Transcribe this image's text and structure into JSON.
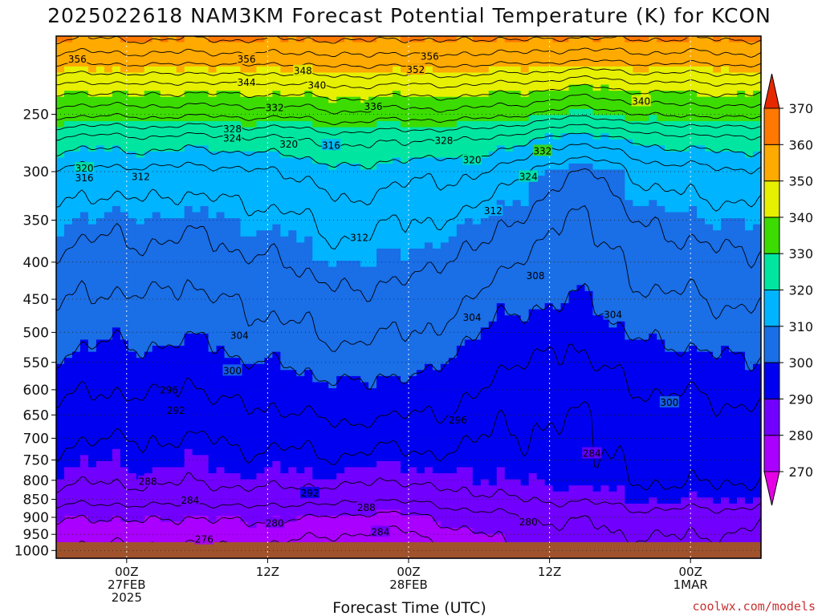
{
  "chart_data": {
    "type": "contour",
    "title": "2025022618 NAM3KM Forecast Potential Temperature (K) for KCON",
    "xlabel": "Forecast Time (UTC)",
    "ylabel": "",
    "credit": "coolwx.com/models",
    "y_axis": {
      "scale": "log",
      "reversed": true,
      "ylim": [
        1025,
        195
      ],
      "ticks": [
        250,
        300,
        350,
        400,
        450,
        500,
        550,
        600,
        650,
        700,
        750,
        800,
        850,
        900,
        950,
        1000
      ],
      "tick_labels": [
        "250",
        "300",
        "350",
        "400",
        "450",
        "500",
        "550",
        "600",
        "650",
        "700",
        "750",
        "800",
        "850",
        "900",
        "950",
        "1000"
      ]
    },
    "x_axis": {
      "xlim": [
        -5,
        45
      ],
      "ticks": [
        {
          "x": 0,
          "lines": [
            "00Z",
            "27FEB",
            "2025"
          ]
        },
        {
          "x": 10,
          "lines": [
            "12Z"
          ]
        },
        {
          "x": 20,
          "lines": [
            "00Z",
            "28FEB"
          ]
        },
        {
          "x": 30,
          "lines": [
            "12Z"
          ]
        },
        {
          "x": 40,
          "lines": [
            "00Z",
            "1MAR"
          ]
        }
      ]
    },
    "grid": true,
    "colorbar": {
      "placement": "right",
      "levels": [
        270,
        280,
        290,
        300,
        310,
        320,
        330,
        340,
        350,
        360,
        370
      ],
      "labels": [
        "270",
        "280",
        "290",
        "300",
        "310",
        "320",
        "330",
        "340",
        "350",
        "360",
        "370"
      ],
      "colors": [
        "#e600e6",
        "#aa00ff",
        "#7200ff",
        "#0000f0",
        "#1a6ee6",
        "#00b4ff",
        "#00e6a0",
        "#3cdc00",
        "#e6f000",
        "#ffaa00",
        "#ff7800",
        "#e62800"
      ]
    },
    "contour_interval": 4,
    "contour_labels": [
      {
        "x": -3.5,
        "p": 210,
        "v": "356"
      },
      {
        "x": 8.5,
        "p": 210,
        "v": "356"
      },
      {
        "x": 20.5,
        "p": 217,
        "v": "352"
      },
      {
        "x": 21.5,
        "p": 208,
        "v": "356"
      },
      {
        "x": 12.5,
        "p": 218,
        "v": "348"
      },
      {
        "x": 13.5,
        "p": 228,
        "v": "340"
      },
      {
        "x": 8.5,
        "p": 226,
        "v": "344"
      },
      {
        "x": 10.5,
        "p": 245,
        "v": "332"
      },
      {
        "x": 17.5,
        "p": 244,
        "v": "336"
      },
      {
        "x": 36.5,
        "p": 240,
        "v": "340"
      },
      {
        "x": 7.5,
        "p": 262,
        "v": "328"
      },
      {
        "x": 7.5,
        "p": 270,
        "v": "324"
      },
      {
        "x": 11.5,
        "p": 275,
        "v": "320"
      },
      {
        "x": 14.5,
        "p": 276,
        "v": "316"
      },
      {
        "x": 22.5,
        "p": 272,
        "v": "328"
      },
      {
        "x": 24.5,
        "p": 289,
        "v": "320"
      },
      {
        "x": 29.5,
        "p": 281,
        "v": "332"
      },
      {
        "x": 28.5,
        "p": 305,
        "v": "324"
      },
      {
        "x": -3.0,
        "p": 297,
        "v": "320"
      },
      {
        "x": -3.0,
        "p": 306,
        "v": "316"
      },
      {
        "x": 1.0,
        "p": 305,
        "v": "312"
      },
      {
        "x": 26.0,
        "p": 340,
        "v": "312"
      },
      {
        "x": 16.5,
        "p": 370,
        "v": "312"
      },
      {
        "x": 29.0,
        "p": 418,
        "v": "308"
      },
      {
        "x": 24.5,
        "p": 477,
        "v": "304"
      },
      {
        "x": 34.5,
        "p": 473,
        "v": "304"
      },
      {
        "x": 8.0,
        "p": 505,
        "v": "304"
      },
      {
        "x": 7.5,
        "p": 565,
        "v": "300"
      },
      {
        "x": 38.5,
        "p": 625,
        "v": "300"
      },
      {
        "x": 3.0,
        "p": 601,
        "v": "296"
      },
      {
        "x": 3.5,
        "p": 641,
        "v": "292"
      },
      {
        "x": 23.5,
        "p": 661,
        "v": "296"
      },
      {
        "x": 1.5,
        "p": 804,
        "v": "288"
      },
      {
        "x": 4.5,
        "p": 853,
        "v": "284"
      },
      {
        "x": 13.0,
        "p": 834,
        "v": "292"
      },
      {
        "x": 17.0,
        "p": 873,
        "v": "288"
      },
      {
        "x": 18.0,
        "p": 943,
        "v": "284"
      },
      {
        "x": 33.0,
        "p": 735,
        "v": "284"
      },
      {
        "x": 10.5,
        "p": 917,
        "v": "280"
      },
      {
        "x": 28.5,
        "p": 914,
        "v": "280"
      },
      {
        "x": 5.5,
        "p": 966,
        "v": "276"
      }
    ]
  }
}
